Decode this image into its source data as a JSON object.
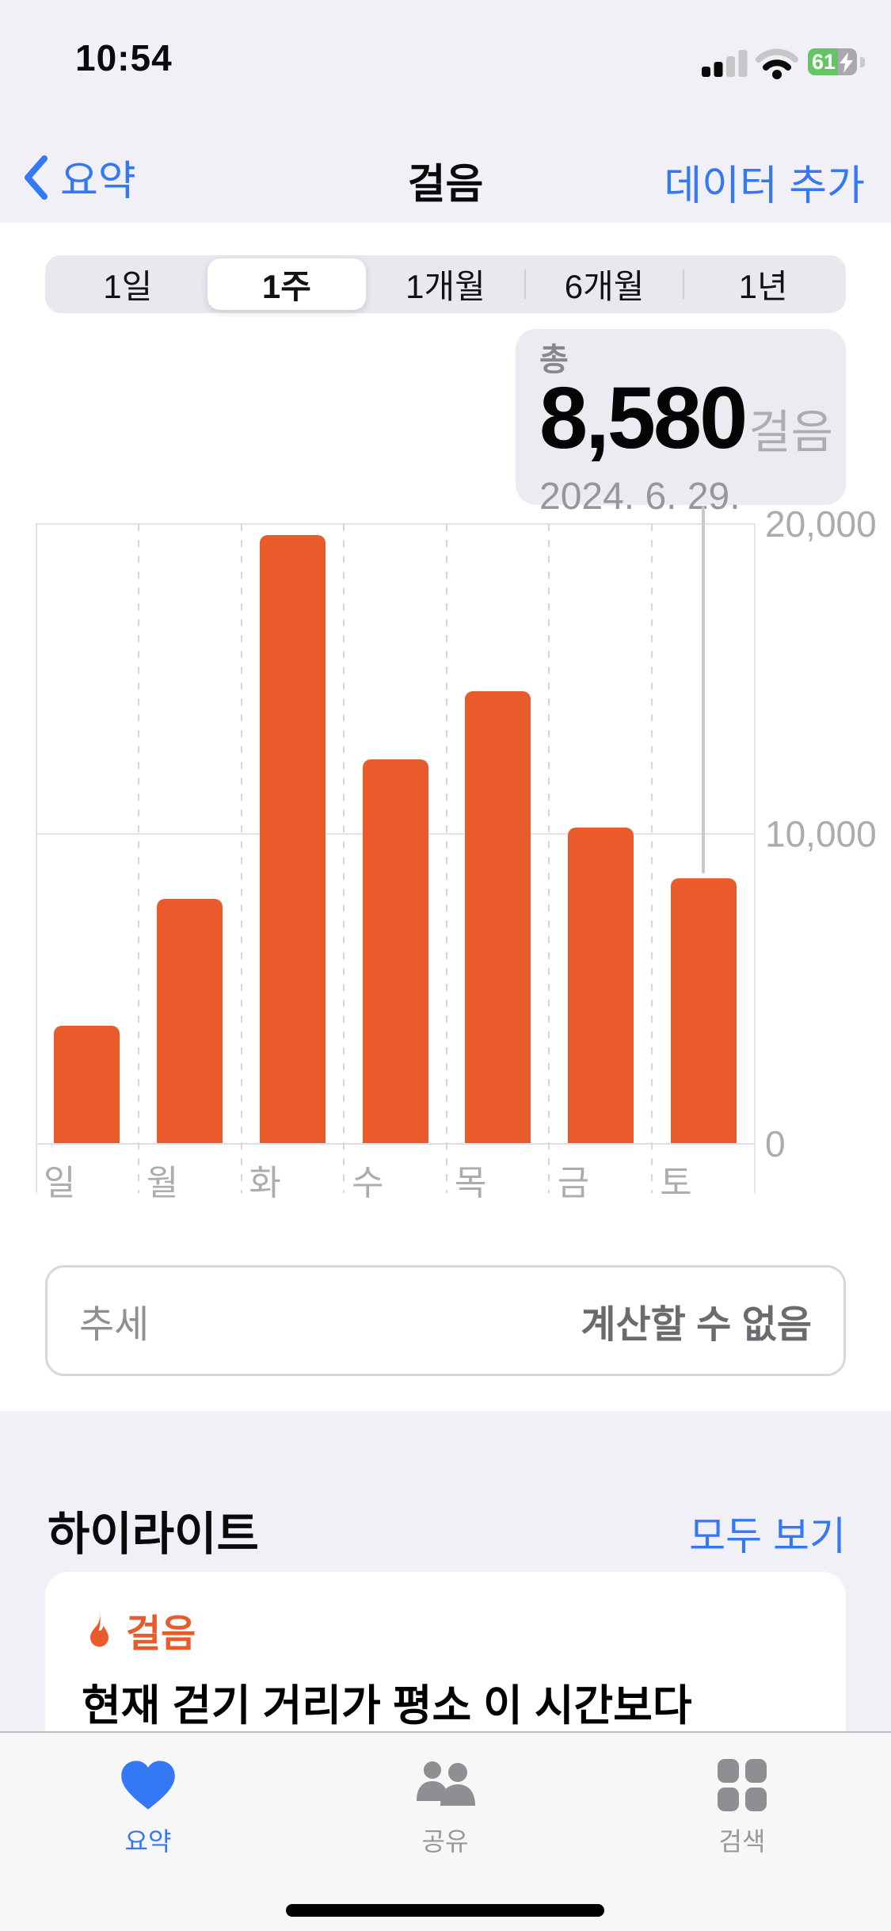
{
  "status_bar": {
    "time": "10:54",
    "battery_percent": "61"
  },
  "nav": {
    "back_label": "요약",
    "title": "걸음",
    "add_data_label": "데이터 추가"
  },
  "range_selector": {
    "options": [
      "1일",
      "1주",
      "1개월",
      "6개월",
      "1년"
    ],
    "selected_index": 1
  },
  "callout": {
    "label": "총",
    "value": "8,580",
    "unit": "걸음",
    "date": "2024. 6. 29."
  },
  "chart_data": {
    "type": "bar",
    "categories": [
      "일",
      "월",
      "화",
      "수",
      "목",
      "금",
      "토"
    ],
    "values": [
      3800,
      7900,
      19650,
      12400,
      14600,
      10200,
      8580
    ],
    "selected_index": 6,
    "selected_total_label": "8,580",
    "ylim": [
      0,
      20000
    ],
    "yticks": [
      {
        "value": 20000,
        "label": "20,000"
      },
      {
        "value": 10000,
        "label": "10,000"
      },
      {
        "value": 0,
        "label": "0"
      }
    ],
    "bar_color": "#EA5B2B",
    "grid": "horizontal solid lines, vertical dashed day separators",
    "legend_position": "none"
  },
  "trend": {
    "label": "추세",
    "value": "계산할 수 없음"
  },
  "highlights": {
    "title": "하이라이트",
    "see_all_label": "모두 보기",
    "card": {
      "icon": "flame-icon",
      "category": "걸음",
      "text": "현재 걷기 거리가 평소 이 시간보다"
    }
  },
  "tab_bar": {
    "items": [
      {
        "label": "요약",
        "icon": "heart-icon",
        "active": true
      },
      {
        "label": "공유",
        "icon": "people-icon",
        "active": false
      },
      {
        "label": "검색",
        "icon": "grid-icon",
        "active": false
      }
    ]
  },
  "colors": {
    "accent_blue": "#3578F6",
    "bar_orange": "#EA5B2B",
    "battery_green": "#65C466",
    "header_gray": "#F1F0F6"
  }
}
